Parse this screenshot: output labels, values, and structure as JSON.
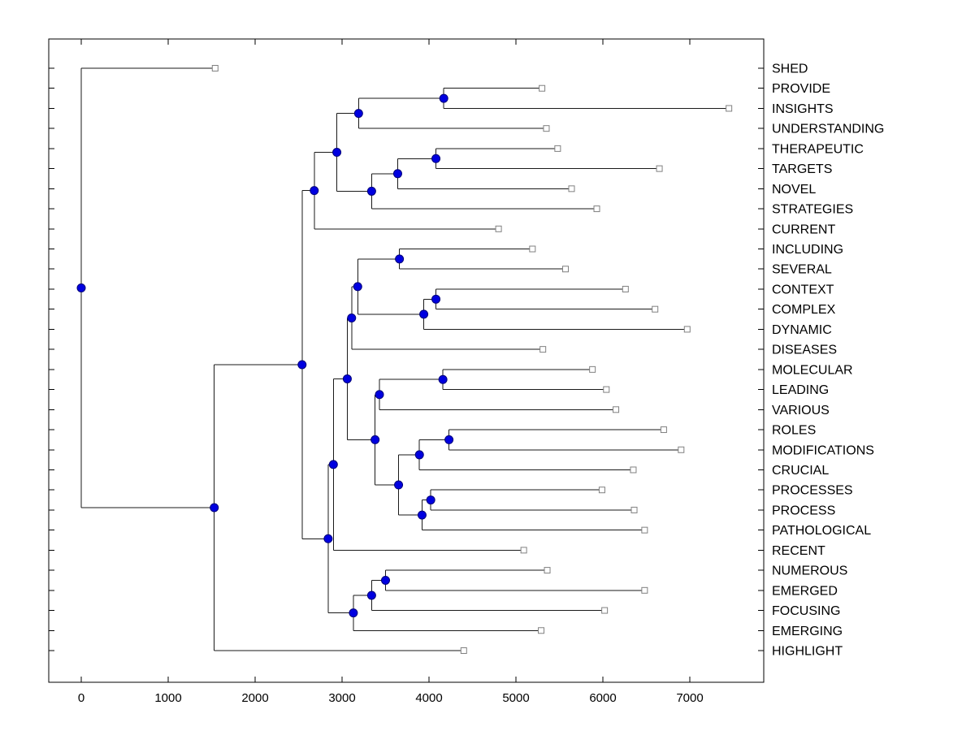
{
  "figure": {
    "background": "#ffffff",
    "axes_box_color": "#000000"
  },
  "chart_data": {
    "type": "dendrogram",
    "title": "",
    "xlabel": "",
    "ylabel": "",
    "orientation": "horizontal-root-left-leaves-right",
    "x_ticks": [
      0,
      1000,
      2000,
      3000,
      4000,
      5000,
      6000,
      7000
    ],
    "x_tick_labels": [
      "0",
      "1000",
      "2000",
      "3000",
      "4000",
      "5000",
      "6000",
      "7000"
    ],
    "xlim": [
      -400,
      7850
    ],
    "grid": false,
    "legend": false,
    "marker_styles": {
      "internal_node": "filled-blue-circle",
      "leaf": "open-square"
    },
    "colors": {
      "edge_line": "#1a1a1a",
      "node_fill": "#0000e0",
      "node_stroke": "#00007a",
      "leaf_fill": "#ffffff",
      "leaf_stroke": "#808080",
      "label": "#000000",
      "axis": "#000000"
    },
    "leaves": [
      {
        "label": "SHED",
        "distance": 1540
      },
      {
        "label": "PROVIDE",
        "distance": 5300
      },
      {
        "label": "INSIGHTS",
        "distance": 7450
      },
      {
        "label": "UNDERSTANDING",
        "distance": 5350
      },
      {
        "label": "THERAPEUTIC",
        "distance": 5480
      },
      {
        "label": "TARGETS",
        "distance": 6650
      },
      {
        "label": "NOVEL",
        "distance": 5640
      },
      {
        "label": "STRATEGIES",
        "distance": 5930
      },
      {
        "label": "CURRENT",
        "distance": 4800
      },
      {
        "label": "INCLUDING",
        "distance": 5190
      },
      {
        "label": "SEVERAL",
        "distance": 5570
      },
      {
        "label": "CONTEXT",
        "distance": 6260
      },
      {
        "label": "COMPLEX",
        "distance": 6600
      },
      {
        "label": "DYNAMIC",
        "distance": 6970
      },
      {
        "label": "DISEASES",
        "distance": 5310
      },
      {
        "label": "MOLECULAR",
        "distance": 5880
      },
      {
        "label": "LEADING",
        "distance": 6040
      },
      {
        "label": "VARIOUS",
        "distance": 6150
      },
      {
        "label": "ROLES",
        "distance": 6700
      },
      {
        "label": "MODIFICATIONS",
        "distance": 6900
      },
      {
        "label": "CRUCIAL",
        "distance": 6350
      },
      {
        "label": "PROCESSES",
        "distance": 5990
      },
      {
        "label": "PROCESS",
        "distance": 6360
      },
      {
        "label": "PATHOLOGICAL",
        "distance": 6480
      },
      {
        "label": "RECENT",
        "distance": 5090
      },
      {
        "label": "NUMEROUS",
        "distance": 5360
      },
      {
        "label": "EMERGED",
        "distance": 6480
      },
      {
        "label": "FOCUSING",
        "distance": 6020
      },
      {
        "label": "EMERGING",
        "distance": 5290
      },
      {
        "label": "HIGHLIGHT",
        "distance": 4400
      }
    ],
    "internal_nodes": [
      {
        "id": "N1",
        "distance": 4170,
        "children": [
          "PROVIDE",
          "INSIGHTS"
        ]
      },
      {
        "id": "N2",
        "distance": 3190,
        "children": [
          "N1",
          "UNDERSTANDING"
        ]
      },
      {
        "id": "N3",
        "distance": 4080,
        "children": [
          "THERAPEUTIC",
          "TARGETS"
        ]
      },
      {
        "id": "N4",
        "distance": 3640,
        "children": [
          "N3",
          "NOVEL"
        ]
      },
      {
        "id": "N5",
        "distance": 3340,
        "children": [
          "N4",
          "STRATEGIES"
        ]
      },
      {
        "id": "N6",
        "distance": 2940,
        "children": [
          "N2",
          "N5"
        ]
      },
      {
        "id": "N7",
        "distance": 2680,
        "children": [
          "N6",
          "CURRENT"
        ]
      },
      {
        "id": "N8",
        "distance": 3660,
        "children": [
          "INCLUDING",
          "SEVERAL"
        ]
      },
      {
        "id": "N9",
        "distance": 4080,
        "children": [
          "CONTEXT",
          "COMPLEX"
        ]
      },
      {
        "id": "N10",
        "distance": 3940,
        "children": [
          "N9",
          "DYNAMIC"
        ]
      },
      {
        "id": "N11",
        "distance": 3180,
        "children": [
          "N8",
          "N10"
        ]
      },
      {
        "id": "N12",
        "distance": 3110,
        "children": [
          "N11",
          "DISEASES"
        ]
      },
      {
        "id": "N13",
        "distance": 4160,
        "children": [
          "MOLECULAR",
          "LEADING"
        ]
      },
      {
        "id": "N14",
        "distance": 3430,
        "children": [
          "N13",
          "VARIOUS"
        ]
      },
      {
        "id": "N15",
        "distance": 4230,
        "children": [
          "ROLES",
          "MODIFICATIONS"
        ]
      },
      {
        "id": "N16",
        "distance": 3890,
        "children": [
          "N15",
          "CRUCIAL"
        ]
      },
      {
        "id": "N17",
        "distance": 4020,
        "children": [
          "PROCESSES",
          "PROCESS"
        ]
      },
      {
        "id": "N18",
        "distance": 3920,
        "children": [
          "N17",
          "PATHOLOGICAL"
        ]
      },
      {
        "id": "N19",
        "distance": 3650,
        "children": [
          "N16",
          "N18"
        ]
      },
      {
        "id": "N20",
        "distance": 3380,
        "children": [
          "N14",
          "N19"
        ]
      },
      {
        "id": "N21",
        "distance": 3060,
        "children": [
          "N12",
          "N20"
        ]
      },
      {
        "id": "N22",
        "distance": 2900,
        "children": [
          "N21",
          "RECENT"
        ]
      },
      {
        "id": "N23",
        "distance": 3500,
        "children": [
          "NUMEROUS",
          "EMERGED"
        ]
      },
      {
        "id": "N24",
        "distance": 3340,
        "children": [
          "N23",
          "FOCUSING"
        ]
      },
      {
        "id": "N25",
        "distance": 3130,
        "children": [
          "N24",
          "EMERGING"
        ]
      },
      {
        "id": "N26",
        "distance": 2840,
        "children": [
          "N22",
          "N25"
        ]
      },
      {
        "id": "N27",
        "distance": 2540,
        "children": [
          "N7",
          "N26"
        ]
      },
      {
        "id": "N28",
        "distance": 1530,
        "children": [
          "N27",
          "HIGHLIGHT"
        ]
      },
      {
        "id": "N29",
        "distance": 0,
        "children": [
          "SHED",
          "N28"
        ]
      }
    ]
  }
}
